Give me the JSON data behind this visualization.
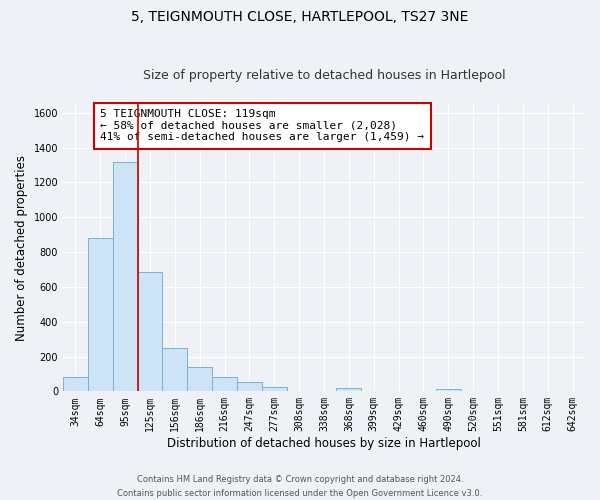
{
  "title": "5, TEIGNMOUTH CLOSE, HARTLEPOOL, TS27 3NE",
  "subtitle": "Size of property relative to detached houses in Hartlepool",
  "xlabel": "Distribution of detached houses by size in Hartlepool",
  "ylabel": "Number of detached properties",
  "bar_labels": [
    "34sqm",
    "64sqm",
    "95sqm",
    "125sqm",
    "156sqm",
    "186sqm",
    "216sqm",
    "247sqm",
    "277sqm",
    "308sqm",
    "338sqm",
    "368sqm",
    "399sqm",
    "429sqm",
    "460sqm",
    "490sqm",
    "520sqm",
    "551sqm",
    "581sqm",
    "612sqm",
    "642sqm"
  ],
  "bar_values": [
    85,
    880,
    1315,
    685,
    250,
    140,
    85,
    55,
    25,
    0,
    0,
    20,
    0,
    0,
    0,
    15,
    0,
    0,
    0,
    0,
    0
  ],
  "bar_color": "#cce4f5",
  "bar_edge_color": "#7ab0d4",
  "ylim": [
    0,
    1650
  ],
  "yticks": [
    0,
    200,
    400,
    600,
    800,
    1000,
    1200,
    1400,
    1600
  ],
  "vline_color": "#cc0000",
  "annotation_line1": "5 TEIGNMOUTH CLOSE: 119sqm",
  "annotation_line2": "← 58% of detached houses are smaller (2,028)",
  "annotation_line3": "41% of semi-detached houses are larger (1,459) →",
  "background_color": "#eef2f7",
  "grid_color": "#ffffff",
  "footer_text": "Contains HM Land Registry data © Crown copyright and database right 2024.\nContains public sector information licensed under the Open Government Licence v3.0.",
  "title_fontsize": 10,
  "subtitle_fontsize": 9,
  "xlabel_fontsize": 8.5,
  "ylabel_fontsize": 8.5,
  "tick_fontsize": 7,
  "annotation_fontsize": 8,
  "footer_fontsize": 6
}
